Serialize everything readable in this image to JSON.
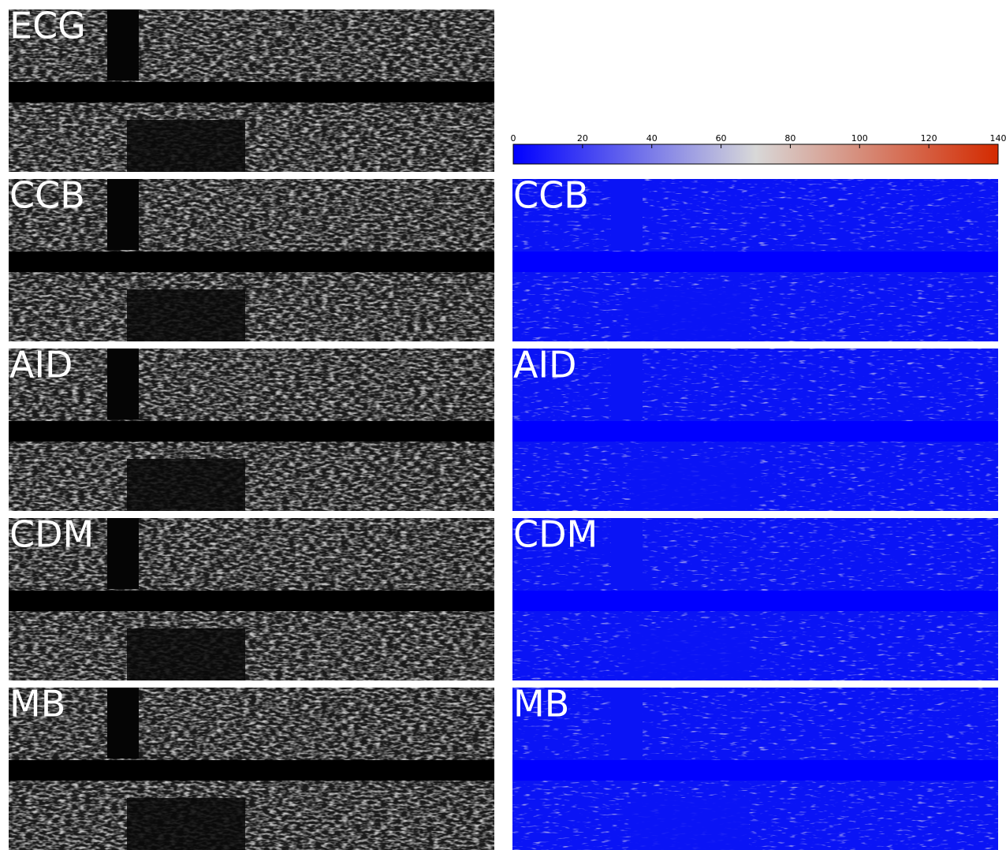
{
  "left_panels": [
    {
      "label": "ECG"
    },
    {
      "label": "CCB"
    },
    {
      "label": "AID"
    },
    {
      "label": "CDM"
    },
    {
      "label": "MB"
    }
  ],
  "right_panels": [
    {
      "label": "CCB"
    },
    {
      "label": "AID"
    },
    {
      "label": "CDM"
    },
    {
      "label": "MB"
    }
  ],
  "colorbar": {
    "range": [
      0,
      140
    ],
    "ticks": [
      0,
      20,
      40,
      60,
      80,
      100,
      120,
      140
    ],
    "colors": [
      "#0000ff",
      "#d8d8d8",
      "#d42a00"
    ]
  }
}
